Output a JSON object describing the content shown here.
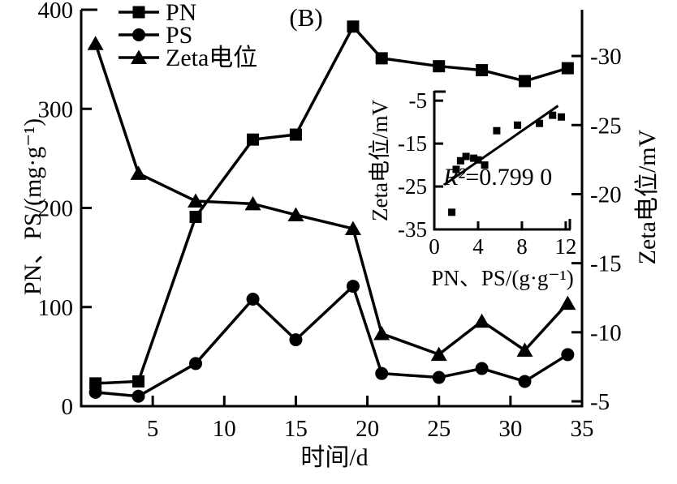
{
  "figure": {
    "panel_label": "(B)",
    "background": "#ffffff",
    "ink": "#000000"
  },
  "legend": {
    "items": [
      {
        "label": "PN",
        "marker": "square"
      },
      {
        "label": "PS",
        "marker": "circle"
      },
      {
        "label": "Zeta电位",
        "marker": "triangle"
      }
    ]
  },
  "chart_data": [
    {
      "id": "main",
      "type": "line",
      "panel_label": "(B)",
      "xlabel": "时间/d",
      "ylabel_left": "PN、PS/(mg·g⁻¹)",
      "ylabel_right": "Zeta电位/mV",
      "xlim": [
        0,
        35
      ],
      "ylim_left": [
        0,
        400
      ],
      "ylim_right": [
        -33.35,
        -4.65
      ],
      "right_axis_orientation": "inverted (more negative at top)",
      "xticks": [
        5,
        10,
        15,
        20,
        25,
        30,
        35
      ],
      "yticks_left": [
        0,
        100,
        200,
        300,
        400
      ],
      "yticks_right": [
        -30,
        -25,
        -20,
        -15,
        -10,
        -5
      ],
      "x": [
        1,
        4,
        8,
        12,
        15,
        19,
        21,
        25,
        28,
        31,
        34
      ],
      "series": [
        {
          "name": "PN",
          "axis": "left",
          "marker": "square",
          "values": [
            23,
            25,
            191,
            269,
            274,
            383,
            351,
            343,
            339,
            328,
            341
          ]
        },
        {
          "name": "PS",
          "axis": "left",
          "marker": "circle",
          "values": [
            14,
            10,
            43,
            108,
            67,
            121,
            33,
            29,
            38,
            25,
            52
          ]
        },
        {
          "name": "Zeta电位",
          "axis": "right",
          "marker": "triangle",
          "values": [
            -30.9,
            -21.5,
            -19.5,
            -19.3,
            -18.5,
            -17.5,
            -9.9,
            -8.4,
            -10.8,
            -8.7,
            -12.1
          ]
        }
      ]
    },
    {
      "id": "inset",
      "type": "scatter",
      "xlabel": "PN、PS/(g·g⁻¹)",
      "ylabel": "Zeta电位/mV",
      "xlim": [
        0,
        12.45
      ],
      "ylim": [
        -35,
        -2.7
      ],
      "xticks": [
        0,
        4,
        8,
        12
      ],
      "yticks": [
        -35,
        -25,
        -15,
        -5
      ],
      "points": [
        [
          1.6,
          -31
        ],
        [
          2.0,
          -21
        ],
        [
          2.4,
          -19
        ],
        [
          2.9,
          -18
        ],
        [
          3.6,
          -18.4
        ],
        [
          4.0,
          -18.8
        ],
        [
          4.6,
          -20
        ],
        [
          5.7,
          -12
        ],
        [
          7.6,
          -10.7
        ],
        [
          9.6,
          -10.3
        ],
        [
          10.8,
          -8.4
        ],
        [
          11.6,
          -8.8
        ]
      ],
      "fit_line": {
        "x1": 0.9,
        "y1": -24.6,
        "x2": 11.3,
        "y2": -6.2
      },
      "annotation": "R²=0.799 0"
    }
  ]
}
